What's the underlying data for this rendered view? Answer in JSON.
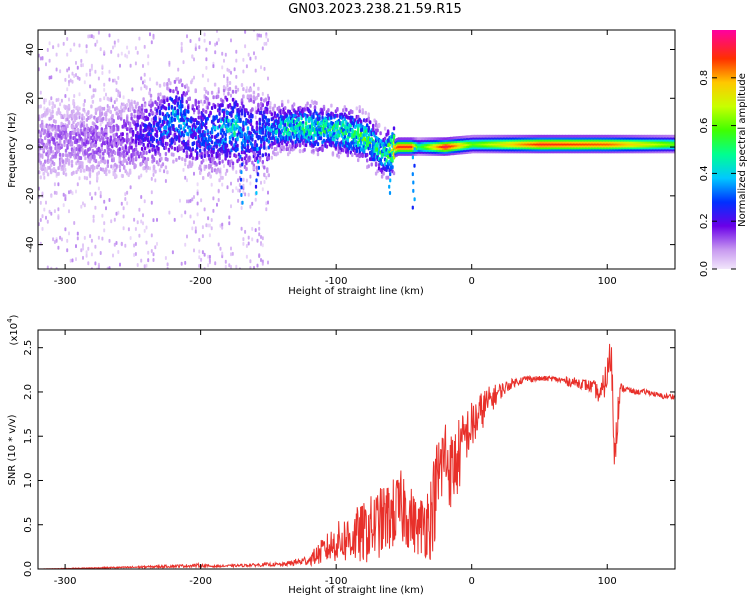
{
  "title": "GN03.2023.238.21.59.R15",
  "colors": {
    "snr_line": "#e8302a",
    "frame": "#000000"
  },
  "chart_data": [
    {
      "type": "heatmap",
      "title": "GN03.2023.238.21.59.R15",
      "xlabel": "Height of straight line (km)",
      "ylabel": "Frequency (Hz)",
      "xlim": [
        -320,
        150
      ],
      "ylim": [
        -50,
        48
      ],
      "x_ticks": [
        -300,
        -200,
        -100,
        0,
        100
      ],
      "y_ticks": [
        -40,
        -20,
        0,
        20,
        40
      ],
      "x_tick_labels": [
        "-300",
        "-200",
        "-100",
        "0",
        "100"
      ],
      "y_tick_labels": [
        "-40",
        "-20",
        "0",
        "20",
        "40"
      ],
      "colorbar": {
        "label": "Normalized spectral amplitude",
        "range": [
          0,
          1
        ],
        "ticks": [
          0.0,
          0.2,
          0.4,
          0.6,
          0.8
        ],
        "tick_labels": [
          "0.0",
          "0.2",
          "0.4",
          "0.6",
          "0.8"
        ]
      },
      "ridge": {
        "x": [
          -320,
          -260,
          -230,
          -220,
          -200,
          -175,
          -170,
          -160,
          -140,
          -120,
          -100,
          -80,
          -65,
          -55,
          -45,
          -40,
          -20,
          0,
          50,
          100,
          150
        ],
        "freq_hz": [
          2,
          3,
          8,
          12,
          5,
          8,
          6,
          5,
          8,
          8,
          7,
          4,
          -3,
          0,
          0,
          0,
          0,
          1,
          1,
          1,
          1
        ],
        "amplitude": [
          0.12,
          0.15,
          0.3,
          0.4,
          0.3,
          0.45,
          0.35,
          0.3,
          0.45,
          0.5,
          0.5,
          0.55,
          0.5,
          0.9,
          0.9,
          0.5,
          0.95,
          0.6,
          0.9,
          0.85,
          0.6
        ]
      },
      "grid": false
    },
    {
      "type": "line",
      "xlabel": "Height of straight line (km)",
      "ylabel": "SNR (10 * v/v)",
      "y_multiplier_label": "(x10",
      "y_multiplier_exp": "4",
      "xlim": [
        -320,
        150
      ],
      "ylim": [
        0,
        2.7
      ],
      "x_ticks": [
        -300,
        -200,
        -100,
        0,
        100
      ],
      "y_ticks": [
        0.0,
        0.5,
        1.0,
        1.5,
        2.0,
        2.5
      ],
      "x_tick_labels": [
        "-300",
        "-200",
        "-100",
        "0",
        "100"
      ],
      "y_tick_labels": [
        "0.0",
        "0.5",
        "1.0",
        "1.5",
        "2.0",
        "2.5"
      ],
      "series": [
        {
          "x": [
            -320,
            -250,
            -200,
            -190,
            -150,
            -140,
            -120,
            -110,
            -100,
            -90,
            -80,
            -70,
            -60,
            -50,
            -40,
            -30,
            -25,
            -20,
            -15,
            -10,
            -5,
            0,
            10,
            20,
            30,
            40,
            50,
            60,
            70,
            80,
            90,
            95,
            100,
            103,
            105,
            110,
            120,
            130,
            140,
            150
          ],
          "y": [
            0.0,
            0.02,
            0.04,
            0.03,
            0.05,
            0.05,
            0.1,
            0.2,
            0.3,
            0.35,
            0.4,
            0.5,
            0.6,
            0.7,
            0.45,
            0.6,
            1.0,
            1.3,
            1.1,
            1.25,
            1.5,
            1.6,
            1.85,
            2.0,
            2.1,
            2.15,
            2.15,
            2.15,
            2.12,
            2.1,
            2.05,
            1.95,
            2.2,
            2.45,
            1.4,
            2.05,
            2.0,
            2.0,
            1.95,
            1.95
          ],
          "noise_amplitude": [
            0.0,
            0.01,
            0.02,
            0.01,
            0.02,
            0.02,
            0.06,
            0.15,
            0.22,
            0.3,
            0.35,
            0.4,
            0.4,
            0.45,
            0.3,
            0.5,
            0.55,
            0.5,
            0.45,
            0.45,
            0.3,
            0.3,
            0.2,
            0.1,
            0.05,
            0.04,
            0.03,
            0.03,
            0.05,
            0.06,
            0.08,
            0.12,
            0.2,
            0.25,
            0.4,
            0.05,
            0.03,
            0.03,
            0.03,
            0.03
          ]
        }
      ],
      "grid": false
    }
  ]
}
